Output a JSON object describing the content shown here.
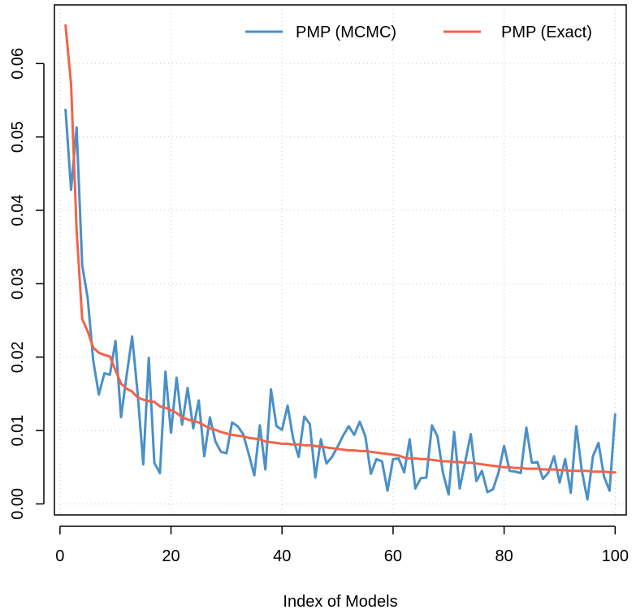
{
  "chart_data": {
    "type": "line",
    "title": "",
    "xlabel": "Index of Models",
    "ylabel": "",
    "xlim": [
      -1,
      102
    ],
    "ylim": [
      -0.0015,
      0.068
    ],
    "xticks": [
      0,
      20,
      40,
      60,
      80,
      100
    ],
    "yticks": [
      0.0,
      0.01,
      0.02,
      0.03,
      0.04,
      0.05,
      0.06
    ],
    "xtick_labels": [
      "0",
      "20",
      "40",
      "60",
      "80",
      "100"
    ],
    "ytick_labels": [
      "0.00",
      "0.01",
      "0.02",
      "0.03",
      "0.04",
      "0.05",
      "0.06"
    ],
    "grid": true,
    "legend_position": "top-right",
    "series": [
      {
        "name": "PMP (MCMC)",
        "color": "#4a90c8",
        "x": [
          1,
          2,
          3,
          4,
          5,
          6,
          7,
          8,
          9,
          10,
          11,
          12,
          13,
          14,
          15,
          16,
          17,
          18,
          19,
          20,
          21,
          22,
          23,
          24,
          25,
          26,
          27,
          28,
          29,
          30,
          31,
          32,
          33,
          34,
          35,
          36,
          37,
          38,
          39,
          40,
          41,
          42,
          43,
          44,
          45,
          46,
          47,
          48,
          49,
          50,
          51,
          52,
          53,
          54,
          55,
          56,
          57,
          58,
          59,
          60,
          61,
          62,
          63,
          64,
          65,
          66,
          67,
          68,
          69,
          70,
          71,
          72,
          73,
          74,
          75,
          76,
          77,
          78,
          79,
          80,
          81,
          82,
          83,
          84,
          85,
          86,
          87,
          88,
          89,
          90,
          91,
          92,
          93,
          94,
          95,
          96,
          97,
          98,
          99,
          100
        ],
        "values": [
          0.0537,
          0.0428,
          0.0513,
          0.0325,
          0.028,
          0.0195,
          0.0149,
          0.0178,
          0.0176,
          0.0222,
          0.0118,
          0.0175,
          0.0228,
          0.015,
          0.0054,
          0.0199,
          0.0056,
          0.0042,
          0.018,
          0.0097,
          0.0172,
          0.0108,
          0.0158,
          0.0103,
          0.0141,
          0.0065,
          0.0118,
          0.0085,
          0.0071,
          0.0069,
          0.0111,
          0.0106,
          0.0095,
          0.0068,
          0.0039,
          0.0107,
          0.0047,
          0.0156,
          0.0106,
          0.0101,
          0.0134,
          0.0089,
          0.0064,
          0.0119,
          0.0109,
          0.0036,
          0.0088,
          0.0055,
          0.0064,
          0.0078,
          0.0093,
          0.0106,
          0.0094,
          0.0112,
          0.0092,
          0.0041,
          0.0061,
          0.0058,
          0.0018,
          0.0061,
          0.0062,
          0.0043,
          0.0088,
          0.0021,
          0.0035,
          0.0036,
          0.0107,
          0.0092,
          0.0042,
          0.0013,
          0.0098,
          0.0021,
          0.0058,
          0.0095,
          0.0031,
          0.0045,
          0.0016,
          0.002,
          0.0043,
          0.0079,
          0.0045,
          0.0044,
          0.0042,
          0.0104,
          0.0056,
          0.0057,
          0.0034,
          0.0043,
          0.0065,
          0.0029,
          0.0061,
          0.0015,
          0.0106,
          0.0045,
          0.0006,
          0.0065,
          0.0083,
          0.0037,
          0.0018,
          0.0122
        ]
      },
      {
        "name": "PMP (Exact)",
        "color": "#f0644a",
        "x": [
          1,
          2,
          3,
          4,
          5,
          6,
          7,
          8,
          9,
          10,
          11,
          12,
          13,
          14,
          15,
          16,
          17,
          18,
          19,
          20,
          21,
          22,
          23,
          24,
          25,
          26,
          27,
          28,
          29,
          30,
          31,
          32,
          33,
          34,
          35,
          36,
          37,
          38,
          39,
          40,
          41,
          42,
          43,
          44,
          45,
          46,
          47,
          48,
          49,
          50,
          51,
          52,
          53,
          54,
          55,
          56,
          57,
          58,
          59,
          60,
          61,
          62,
          63,
          64,
          65,
          66,
          67,
          68,
          69,
          70,
          71,
          72,
          73,
          74,
          75,
          76,
          77,
          78,
          79,
          80,
          81,
          82,
          83,
          84,
          85,
          86,
          87,
          88,
          89,
          90,
          91,
          92,
          93,
          94,
          95,
          96,
          97,
          98,
          99,
          100
        ],
        "values": [
          0.0652,
          0.0572,
          0.0373,
          0.0252,
          0.0235,
          0.0213,
          0.0206,
          0.0203,
          0.0201,
          0.0182,
          0.0164,
          0.0157,
          0.0153,
          0.0145,
          0.0142,
          0.014,
          0.0139,
          0.0133,
          0.0131,
          0.0128,
          0.0124,
          0.0118,
          0.0115,
          0.0113,
          0.0111,
          0.0107,
          0.0103,
          0.0101,
          0.0098,
          0.0096,
          0.0094,
          0.0093,
          0.0092,
          0.009,
          0.0089,
          0.0088,
          0.0085,
          0.0084,
          0.0083,
          0.0082,
          0.0082,
          0.0081,
          0.0081,
          0.008,
          0.008,
          0.0079,
          0.0078,
          0.0077,
          0.0076,
          0.0075,
          0.0074,
          0.0073,
          0.0073,
          0.0072,
          0.0072,
          0.0071,
          0.007,
          0.0069,
          0.0068,
          0.0067,
          0.0066,
          0.0063,
          0.0062,
          0.0062,
          0.0061,
          0.0061,
          0.006,
          0.0059,
          0.0058,
          0.0058,
          0.0057,
          0.0057,
          0.0056,
          0.0056,
          0.0055,
          0.0054,
          0.0053,
          0.0052,
          0.0051,
          0.005,
          0.005,
          0.0049,
          0.0049,
          0.0048,
          0.0048,
          0.0048,
          0.0047,
          0.0047,
          0.0047,
          0.0046,
          0.0046,
          0.0045,
          0.0045,
          0.0045,
          0.0045,
          0.0044,
          0.0044,
          0.0044,
          0.0043,
          0.0043
        ]
      }
    ]
  }
}
